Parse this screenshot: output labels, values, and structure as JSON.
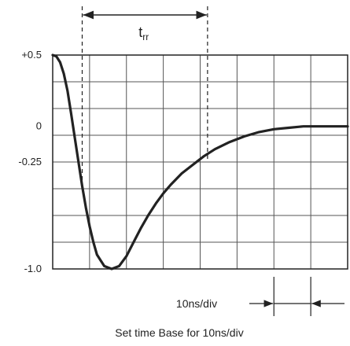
{
  "chart_data": {
    "type": "line",
    "ylim": [
      -1.0,
      0.5
    ],
    "y_tick_values": [
      0.5,
      0,
      -0.25,
      -1.0
    ],
    "y_tick_labels": [
      "+0.5",
      "0",
      "-0.25",
      "-1.0"
    ],
    "grid": true,
    "x_divisions": 8,
    "y_divisions": 8,
    "xlim_ns": [
      0,
      80
    ],
    "series": [
      {
        "x": [
          0,
          1,
          2,
          3,
          4,
          5,
          6,
          7,
          8,
          9,
          10,
          11,
          12,
          14,
          16,
          18,
          20,
          22,
          24,
          26,
          28,
          30,
          32,
          35,
          38,
          41,
          44,
          48,
          52,
          56,
          60,
          64,
          68,
          72,
          76,
          80
        ],
        "y": [
          0.5,
          0.49,
          0.45,
          0.37,
          0.25,
          0.09,
          -0.08,
          -0.25,
          -0.42,
          -0.57,
          -0.7,
          -0.81,
          -0.9,
          -0.98,
          -1.0,
          -0.98,
          -0.91,
          -0.81,
          -0.71,
          -0.62,
          -0.54,
          -0.47,
          -0.41,
          -0.33,
          -0.27,
          -0.21,
          -0.16,
          -0.11,
          -0.07,
          -0.04,
          -0.02,
          -0.01,
          0.0,
          0.0,
          0.0,
          0.0
        ]
      }
    ],
    "annotations": {
      "trr_label": "t",
      "trr_subscript": "rr",
      "trr_x_ns": [
        8,
        42
      ],
      "division_label": "10ns/div",
      "division_marker_x_ns": [
        60,
        70
      ],
      "caption": "Set time Base for 10ns/div"
    }
  }
}
